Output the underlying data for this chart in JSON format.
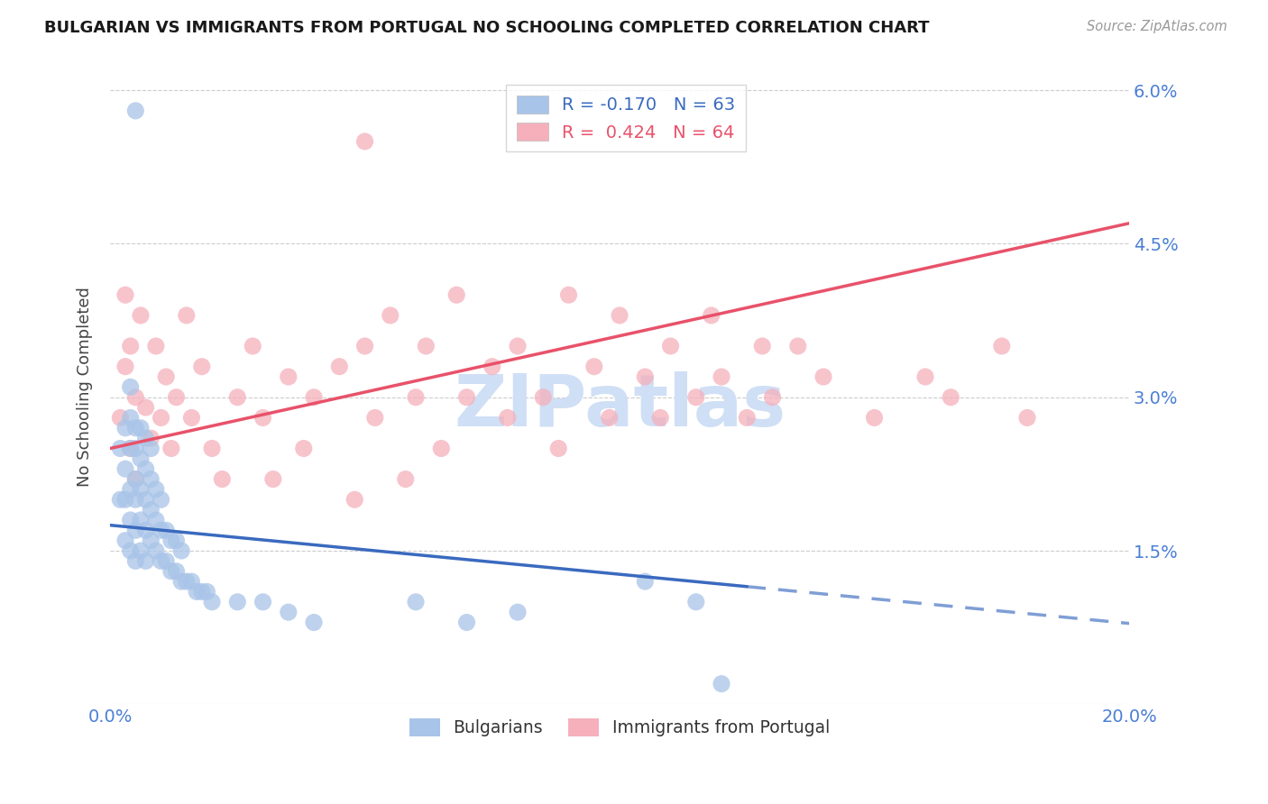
{
  "title": "BULGARIAN VS IMMIGRANTS FROM PORTUGAL NO SCHOOLING COMPLETED CORRELATION CHART",
  "source": "Source: ZipAtlas.com",
  "ylabel": "No Schooling Completed",
  "xlim": [
    0.0,
    0.2
  ],
  "ylim": [
    0.0,
    0.062
  ],
  "yticks": [
    0.0,
    0.015,
    0.03,
    0.045,
    0.06
  ],
  "ytick_labels": [
    "",
    "1.5%",
    "3.0%",
    "4.5%",
    "6.0%"
  ],
  "xticks": [
    0.0,
    0.05,
    0.1,
    0.15,
    0.2
  ],
  "xtick_labels": [
    "0.0%",
    "",
    "",
    "",
    "20.0%"
  ],
  "blue_R": -0.17,
  "blue_N": 63,
  "pink_R": 0.424,
  "pink_N": 64,
  "blue_color": "#a8c4e8",
  "pink_color": "#f5b0bc",
  "blue_line_color": "#3a6abf",
  "pink_line_color": "#e8526a",
  "blue_line_solid_end": 0.125,
  "watermark": "ZIPatlas",
  "watermark_color": "#cfdff5",
  "background_color": "#ffffff",
  "grid_color": "#cccccc",
  "title_color": "#1a1a1a",
  "axis_label_color": "#4a7fd4",
  "blue_scatter_x": [
    0.002,
    0.002,
    0.003,
    0.003,
    0.003,
    0.003,
    0.004,
    0.004,
    0.004,
    0.004,
    0.004,
    0.004,
    0.005,
    0.005,
    0.005,
    0.005,
    0.005,
    0.005,
    0.005,
    0.006,
    0.006,
    0.006,
    0.006,
    0.006,
    0.007,
    0.007,
    0.007,
    0.007,
    0.007,
    0.008,
    0.008,
    0.008,
    0.008,
    0.009,
    0.009,
    0.009,
    0.01,
    0.01,
    0.01,
    0.011,
    0.011,
    0.012,
    0.012,
    0.013,
    0.013,
    0.014,
    0.014,
    0.015,
    0.016,
    0.017,
    0.018,
    0.019,
    0.02,
    0.025,
    0.03,
    0.035,
    0.04,
    0.06,
    0.07,
    0.08,
    0.105,
    0.115,
    0.12
  ],
  "blue_scatter_y": [
    0.02,
    0.025,
    0.016,
    0.02,
    0.023,
    0.027,
    0.015,
    0.018,
    0.021,
    0.025,
    0.028,
    0.031,
    0.014,
    0.017,
    0.02,
    0.022,
    0.025,
    0.027,
    0.058,
    0.015,
    0.018,
    0.021,
    0.024,
    0.027,
    0.014,
    0.017,
    0.02,
    0.023,
    0.026,
    0.016,
    0.019,
    0.022,
    0.025,
    0.015,
    0.018,
    0.021,
    0.014,
    0.017,
    0.02,
    0.014,
    0.017,
    0.013,
    0.016,
    0.013,
    0.016,
    0.012,
    0.015,
    0.012,
    0.012,
    0.011,
    0.011,
    0.011,
    0.01,
    0.01,
    0.01,
    0.009,
    0.008,
    0.01,
    0.008,
    0.009,
    0.012,
    0.01,
    0.002
  ],
  "pink_scatter_x": [
    0.002,
    0.003,
    0.003,
    0.004,
    0.004,
    0.005,
    0.005,
    0.006,
    0.007,
    0.008,
    0.009,
    0.01,
    0.011,
    0.012,
    0.013,
    0.015,
    0.016,
    0.018,
    0.02,
    0.022,
    0.025,
    0.028,
    0.03,
    0.032,
    0.035,
    0.038,
    0.04,
    0.045,
    0.048,
    0.05,
    0.052,
    0.055,
    0.058,
    0.06,
    0.062,
    0.065,
    0.068,
    0.07,
    0.075,
    0.078,
    0.08,
    0.085,
    0.088,
    0.09,
    0.095,
    0.098,
    0.1,
    0.105,
    0.108,
    0.11,
    0.115,
    0.118,
    0.12,
    0.125,
    0.128,
    0.13,
    0.135,
    0.14,
    0.15,
    0.16,
    0.165,
    0.175,
    0.18,
    0.05
  ],
  "pink_scatter_y": [
    0.028,
    0.033,
    0.04,
    0.025,
    0.035,
    0.022,
    0.03,
    0.038,
    0.029,
    0.026,
    0.035,
    0.028,
    0.032,
    0.025,
    0.03,
    0.038,
    0.028,
    0.033,
    0.025,
    0.022,
    0.03,
    0.035,
    0.028,
    0.022,
    0.032,
    0.025,
    0.03,
    0.033,
    0.02,
    0.035,
    0.028,
    0.038,
    0.022,
    0.03,
    0.035,
    0.025,
    0.04,
    0.03,
    0.033,
    0.028,
    0.035,
    0.03,
    0.025,
    0.04,
    0.033,
    0.028,
    0.038,
    0.032,
    0.028,
    0.035,
    0.03,
    0.038,
    0.032,
    0.028,
    0.035,
    0.03,
    0.035,
    0.032,
    0.028,
    0.032,
    0.03,
    0.035,
    0.028,
    0.055
  ],
  "blue_line_intercept": 0.0175,
  "blue_line_slope": -0.048,
  "pink_line_intercept": 0.025,
  "pink_line_slope": 0.11
}
